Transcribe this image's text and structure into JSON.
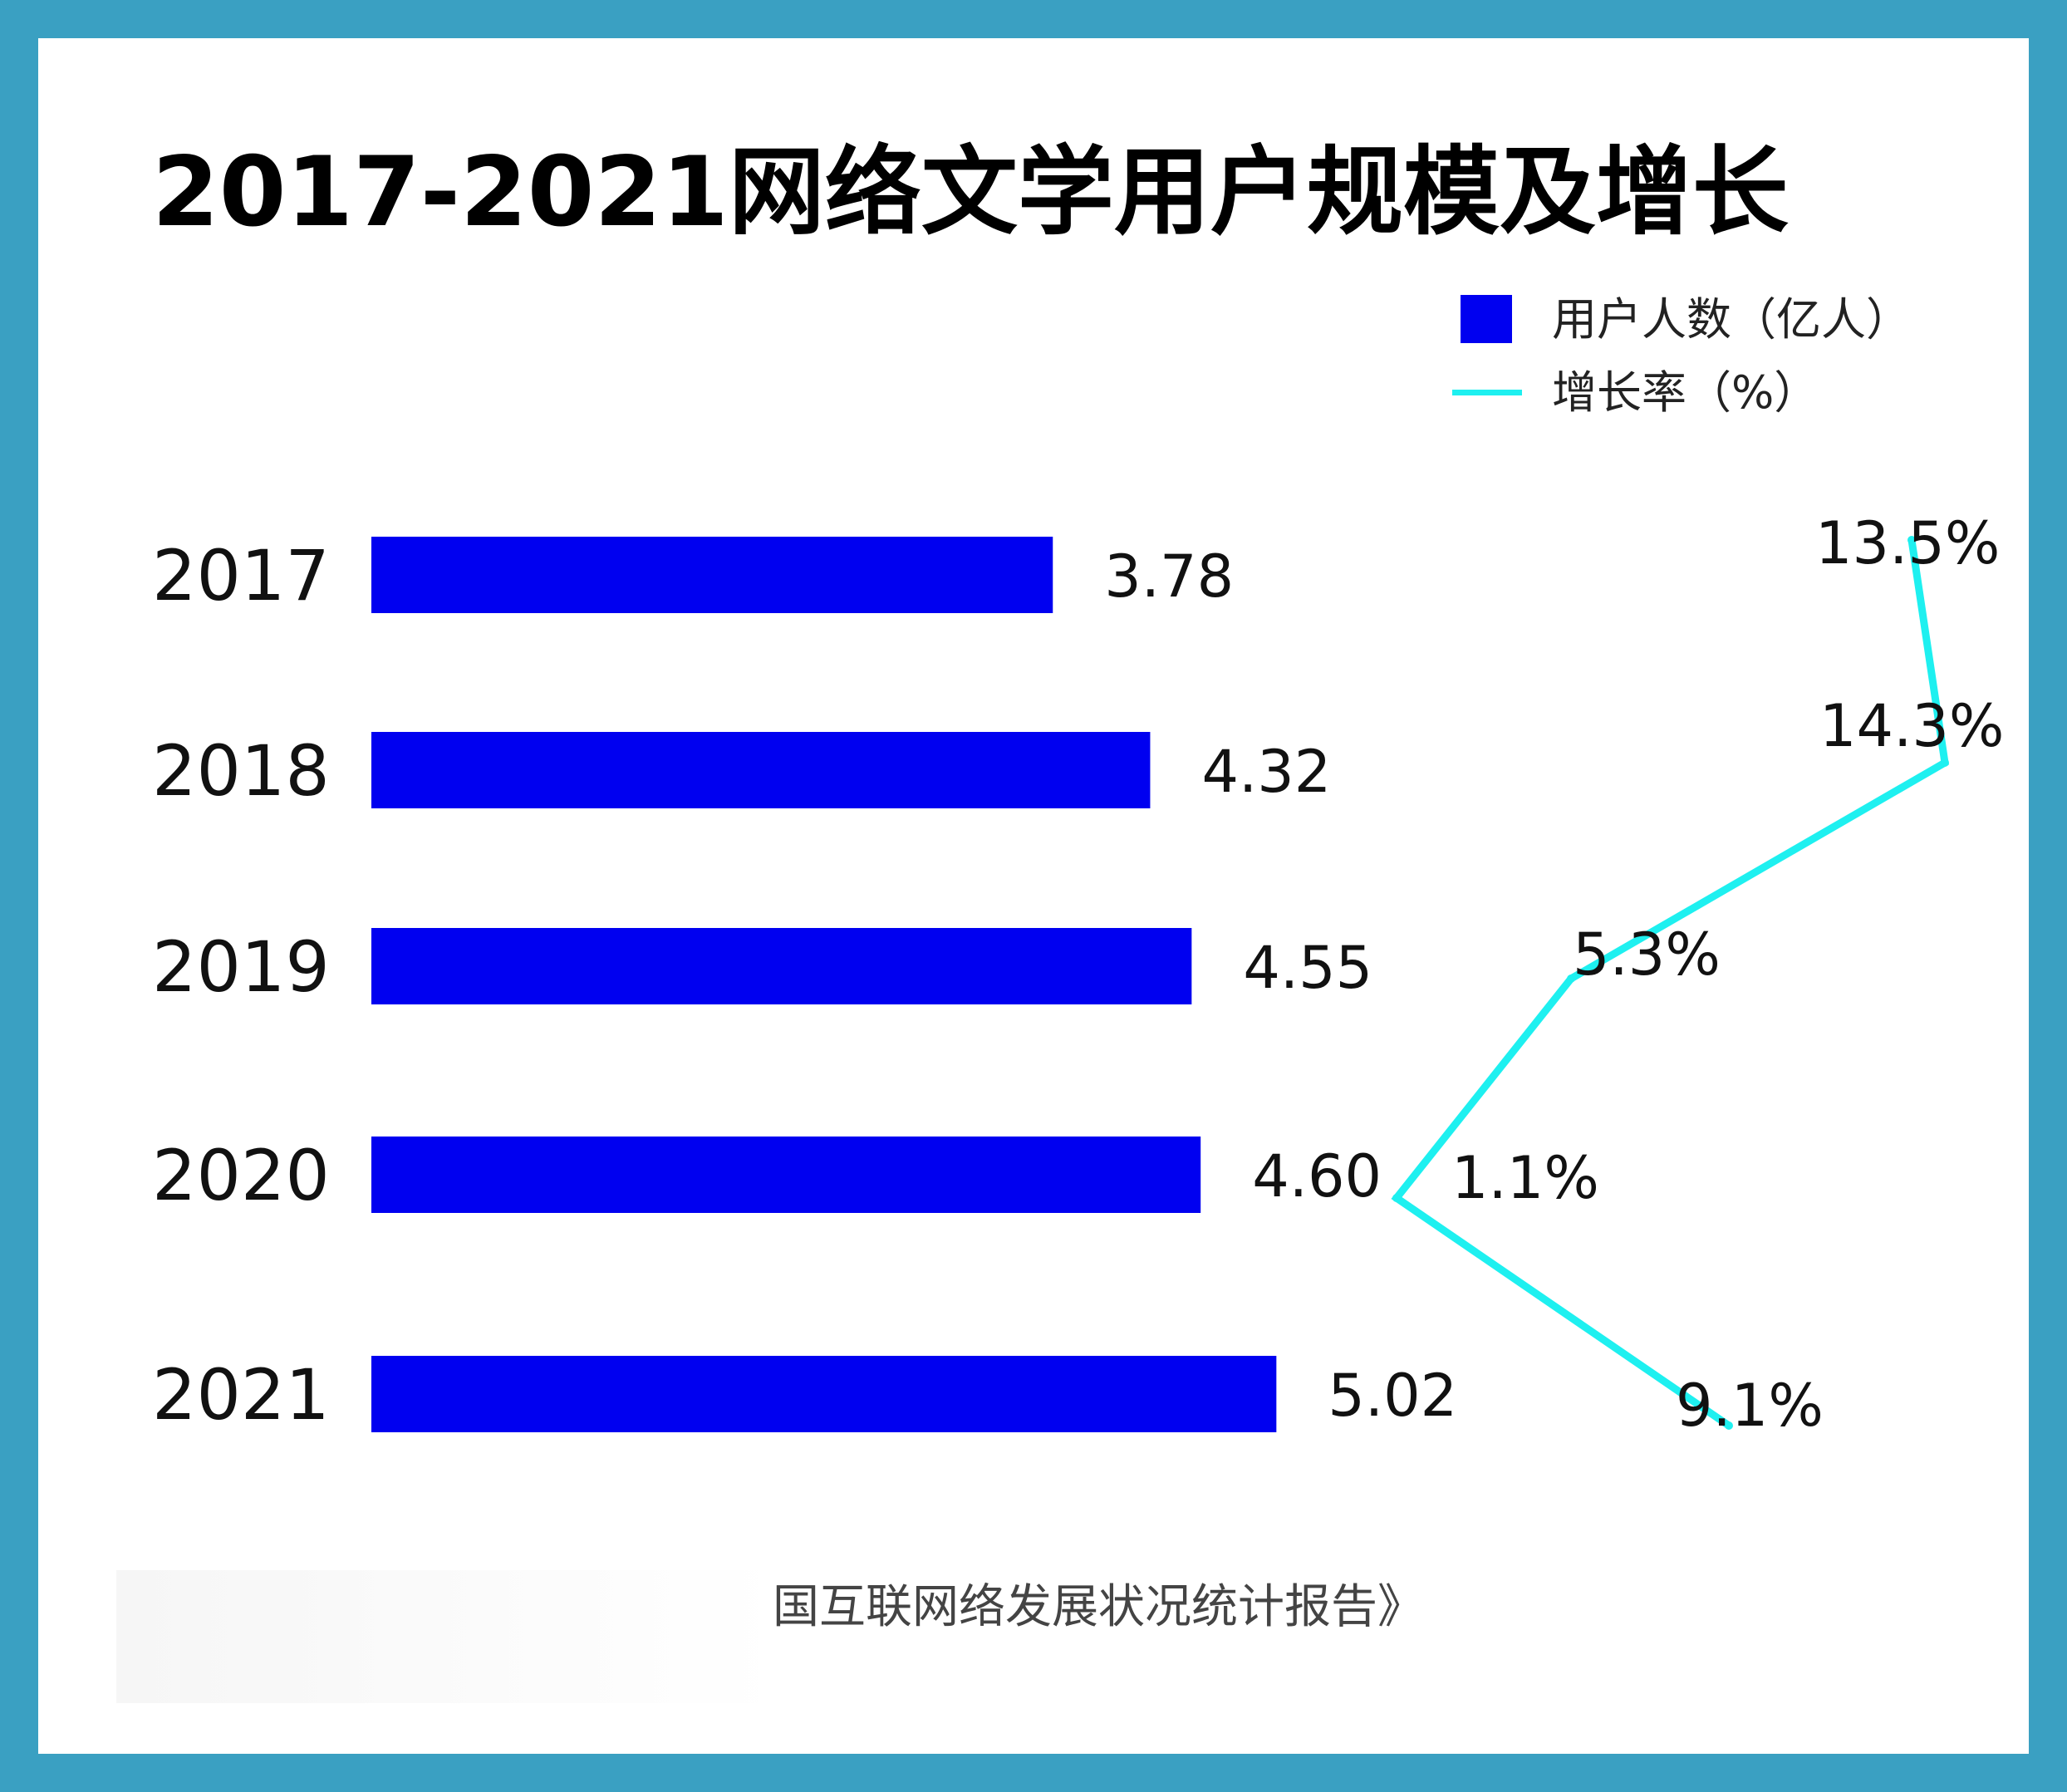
{
  "title": "2017-2021网络文学用户规模及增长",
  "legend": {
    "bar_label": "用户人数（亿人）",
    "line_label": "增长率（%）"
  },
  "source": "国互联网络发展状况统计报告》",
  "colors": {
    "bar": "#0000f0",
    "line": "#1ef0f0",
    "frame": "#3aa0c2"
  },
  "chart_data": {
    "type": "bar",
    "orientation": "horizontal",
    "categories": [
      "2017",
      "2018",
      "2019",
      "2020",
      "2021"
    ],
    "series": [
      {
        "name": "用户人数（亿人）",
        "type": "bar",
        "values": [
          3.78,
          4.32,
          4.55,
          4.6,
          5.02
        ],
        "labels": [
          "3.78",
          "4.32",
          "4.55",
          "4.60",
          "5.02"
        ]
      },
      {
        "name": "增长率（%）",
        "type": "line",
        "values": [
          13.5,
          14.3,
          5.3,
          1.1,
          9.1
        ],
        "labels": [
          "13.5%",
          "14.3%",
          "5.3%",
          "1.1%",
          "9.1%"
        ]
      }
    ],
    "title": "2017-2021网络文学用户规模及增长",
    "legend_position": "top-right",
    "grid": false
  }
}
